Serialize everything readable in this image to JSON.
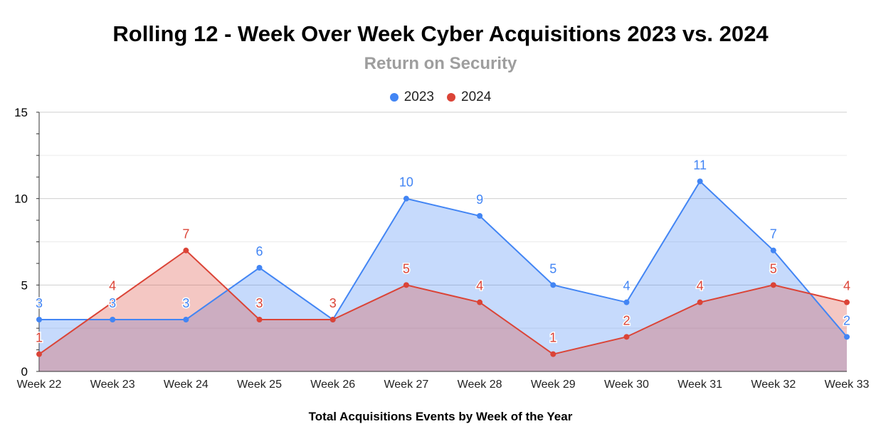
{
  "chart_data": {
    "type": "area",
    "title": "Rolling 12 - Week Over Week Cyber Acquisitions 2023 vs. 2024",
    "subtitle": "Return on Security",
    "xlabel": "Total Acquisitions Events by Week of the Year",
    "ylabel": "",
    "ylim": [
      0,
      15
    ],
    "yticks": [
      "0",
      "5",
      "10",
      "15"
    ],
    "grid": true,
    "legend_position": "top-center",
    "categories": [
      "Week 22",
      "Week 23",
      "Week 24",
      "Week 25",
      "Week 26",
      "Week 27",
      "Week 28",
      "Week 29",
      "Week 30",
      "Week 31",
      "Week 32",
      "Week 33"
    ],
    "series": [
      {
        "name": "2023",
        "color": "#4285f4",
        "fill": "#c6d9f8",
        "values": [
          3,
          3,
          3,
          6,
          3,
          10,
          9,
          5,
          4,
          11,
          7,
          2
        ]
      },
      {
        "name": "2024",
        "color": "#db4437",
        "fill": "#f4b6b0",
        "values": [
          1,
          4,
          7,
          3,
          3,
          5,
          4,
          1,
          2,
          4,
          5,
          4
        ]
      }
    ]
  }
}
